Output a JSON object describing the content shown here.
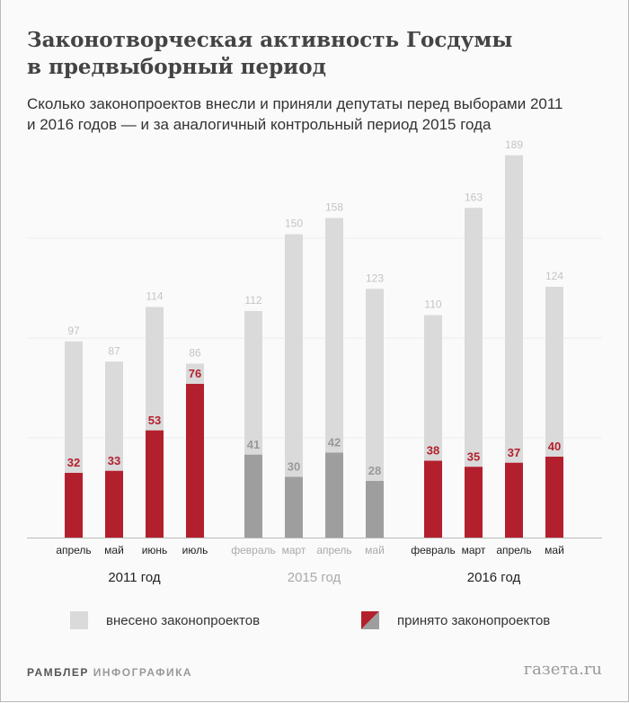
{
  "title_line1": "Законотворческая активность Госдумы",
  "title_line2": "в предвыборный период",
  "subtitle_line1": "Сколько законопроектов внесли и приняли депутаты перед выборами 2011",
  "subtitle_line2": "и 2016 годов — и за аналогичный контрольный период 2015 года",
  "chart_data": {
    "type": "bar",
    "grid": true,
    "ylim": [
      0,
      190
    ],
    "groups": [
      {
        "label": "2011 год",
        "accepted_color": "#b3202d",
        "label_color": "#222222",
        "categories": [
          "апрель",
          "май",
          "июнь",
          "июль"
        ],
        "introduced": [
          97,
          87,
          114,
          86
        ],
        "accepted": [
          32,
          33,
          53,
          76
        ]
      },
      {
        "label": "2015 год",
        "accepted_color": "#9e9e9e",
        "label_color": "#aaaaaa",
        "categories": [
          "февраль",
          "март",
          "апрель",
          "май"
        ],
        "introduced": [
          112,
          150,
          158,
          123
        ],
        "accepted": [
          41,
          30,
          42,
          28
        ]
      },
      {
        "label": "2016 год",
        "accepted_color": "#b3202d",
        "label_color": "#222222",
        "categories": [
          "февраль",
          "март",
          "апрель",
          "май"
        ],
        "introduced": [
          110,
          163,
          189,
          124
        ],
        "accepted": [
          38,
          35,
          37,
          40
        ]
      }
    ],
    "introduced_color": "#dadada",
    "legend": {
      "introduced": "внесено законопроектов",
      "accepted": "принято законопроектов",
      "placement": "bottom"
    }
  },
  "footer": {
    "brand_bold": "РАМБЛЕР",
    "brand_light": "ИНФОГРАФИКА",
    "source": "газета.ru"
  }
}
